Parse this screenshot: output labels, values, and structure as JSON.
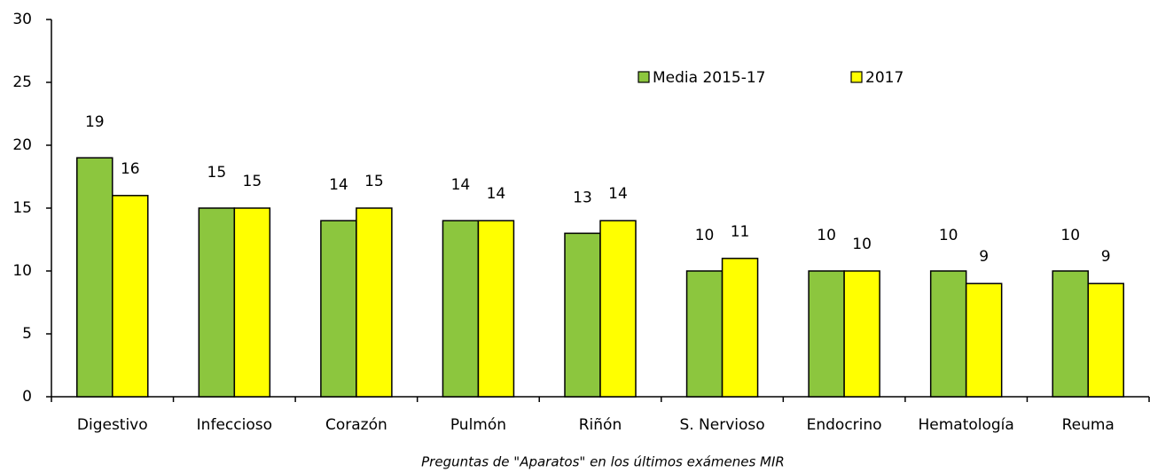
{
  "chart_data": {
    "type": "bar",
    "x_label": "Preguntas de \"Aparatos\" en  los últimos exámenes MIR",
    "categories": [
      "Digestivo",
      "Infeccioso",
      "Corazón",
      "Pulmón",
      "Riñón",
      "S. Nervioso",
      "Endocrino",
      "Hematología",
      "Reuma"
    ],
    "series": [
      {
        "name": "Media 2015-17",
        "color": "#8cc63e",
        "values": [
          19,
          15,
          14,
          14,
          13,
          10,
          10,
          10,
          10
        ]
      },
      {
        "name": "2017",
        "color": "#ffff00",
        "values": [
          16,
          15,
          15,
          14,
          14,
          11,
          10,
          9,
          9
        ]
      }
    ],
    "ylim": [
      0,
      30
    ],
    "yticks": [
      0,
      5,
      10,
      15,
      20,
      25,
      30
    ],
    "legend": "top-right"
  }
}
